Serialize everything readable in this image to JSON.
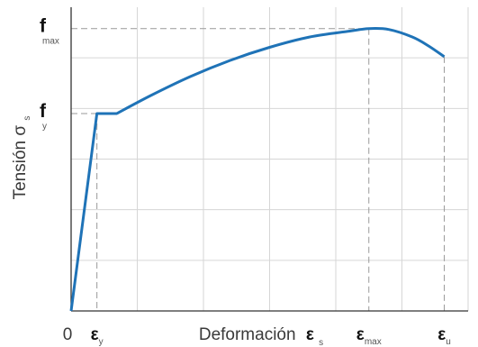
{
  "chart_data": {
    "type": "line",
    "title": "",
    "xlabel": "Deformación",
    "xlabel_symbol": "ε",
    "xlabel_sub": "s",
    "ylabel": "Tensión σ",
    "ylabel_sub": "s",
    "xlim": [
      0,
      100
    ],
    "ylim": [
      0,
      100
    ],
    "grid": true,
    "series": [
      {
        "color": "#1f73b7",
        "points": [
          [
            0,
            0
          ],
          [
            6.5,
            67.4
          ],
          [
            11.5,
            67.4
          ],
          [
            20,
            73.5
          ],
          [
            30,
            80
          ],
          [
            40,
            85.5
          ],
          [
            50,
            90
          ],
          [
            60,
            93.5
          ],
          [
            70,
            95.5
          ],
          [
            75,
            96.4
          ],
          [
            80,
            96.1
          ],
          [
            86,
            93.5
          ],
          [
            90,
            90.5
          ],
          [
            94,
            86.8
          ]
        ]
      }
    ],
    "x_ticks": [
      {
        "value": 0,
        "label": "0",
        "bold": false,
        "sub": ""
      },
      {
        "value": 6.5,
        "label": "ε",
        "bold": true,
        "sub": "y"
      },
      {
        "value": 75,
        "label": "ε",
        "bold": true,
        "sub": "max"
      },
      {
        "value": 94,
        "label": "ε",
        "bold": true,
        "sub": "u"
      }
    ],
    "y_ticks": [
      {
        "value": 67.4,
        "label": "f",
        "sub": "y"
      },
      {
        "value": 96.4,
        "label": "f",
        "sub": "max"
      }
    ],
    "reference_lines": [
      {
        "x": 6.5,
        "y": 67.4
      },
      {
        "x": 75,
        "y": 96.4
      },
      {
        "x": 94,
        "y": 86.8
      }
    ],
    "colors": {
      "curve": "#1f73b7",
      "grid": "#d6d6d6",
      "axis": "#333333",
      "dashed": "#999999"
    }
  }
}
